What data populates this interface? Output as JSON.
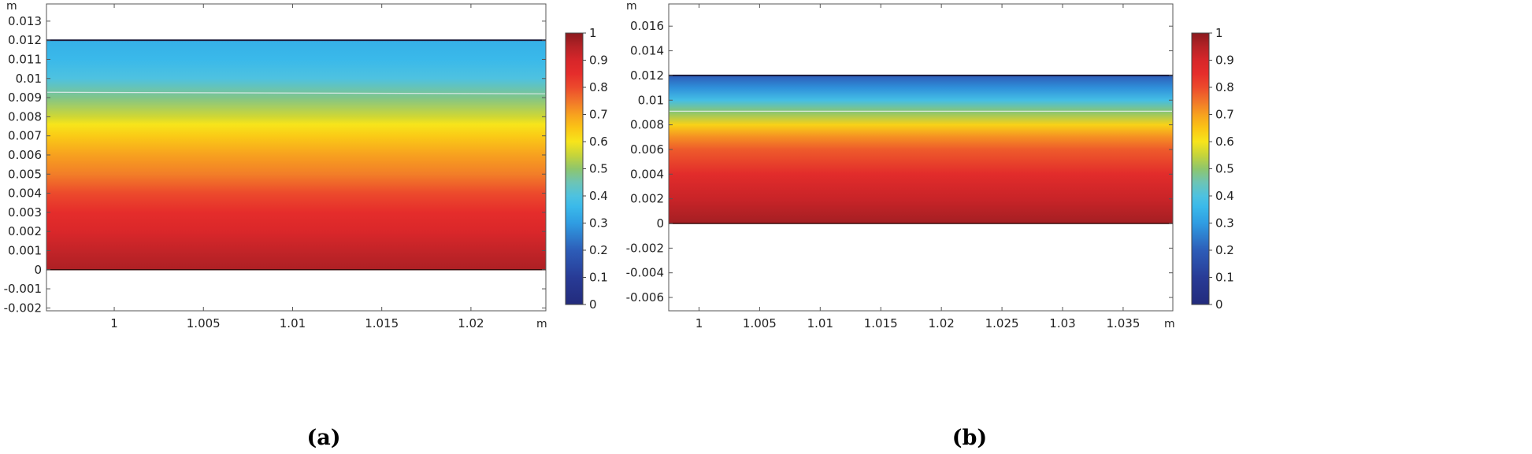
{
  "chart_data": [
    {
      "type": "heatmap",
      "panel_label": "(a)",
      "x_unit": "m",
      "y_unit": "m",
      "xlim": [
        0.9962,
        1.0242
      ],
      "ylim": [
        -0.00215,
        0.0139
      ],
      "x_ticks": [
        1,
        1.005,
        1.01,
        1.015,
        1.02
      ],
      "x_tick_labels": [
        "1",
        "1.005",
        "1.01",
        "1.015",
        "1.02"
      ],
      "y_ticks": [
        -0.002,
        -0.001,
        0,
        0.001,
        0.002,
        0.003,
        0.004,
        0.005,
        0.006,
        0.007,
        0.008,
        0.009,
        0.01,
        0.011,
        0.012,
        0.013
      ],
      "y_tick_labels": [
        "-0.002",
        "-0.001",
        "0",
        "0.001",
        "0.002",
        "0.003",
        "0.004",
        "0.005",
        "0.006",
        "0.007",
        "0.008",
        "0.009",
        "0.01",
        "0.011",
        "0.012",
        "0.013"
      ],
      "domain_y": [
        0,
        0.012
      ],
      "field_profile": [
        {
          "y": 0.0,
          "value": 0.96
        },
        {
          "y": 0.001,
          "value": 0.93
        },
        {
          "y": 0.002,
          "value": 0.89
        },
        {
          "y": 0.003,
          "value": 0.85
        },
        {
          "y": 0.004,
          "value": 0.8
        },
        {
          "y": 0.005,
          "value": 0.74
        },
        {
          "y": 0.006,
          "value": 0.7
        },
        {
          "y": 0.007,
          "value": 0.64
        },
        {
          "y": 0.0076,
          "value": 0.6
        },
        {
          "y": 0.008,
          "value": 0.56
        },
        {
          "y": 0.009,
          "value": 0.48
        },
        {
          "y": 0.01,
          "value": 0.4
        },
        {
          "y": 0.011,
          "value": 0.36
        },
        {
          "y": 0.012,
          "value": 0.34
        }
      ],
      "contour_line_y": [
        0.00928,
        0.0092
      ],
      "colorbar": {
        "range": [
          0,
          1
        ],
        "ticks": [
          0,
          0.1,
          0.2,
          0.3,
          0.4,
          0.5,
          0.6,
          0.7,
          0.8,
          0.9,
          1
        ],
        "tick_labels": [
          "0",
          "0.1",
          "0.2",
          "0.3",
          "0.4",
          "0.5",
          "0.6",
          "0.7",
          "0.8",
          "0.9",
          "1"
        ]
      }
    },
    {
      "type": "heatmap",
      "panel_label": "(b)",
      "x_unit": "m",
      "y_unit": "m",
      "xlim": [
        0.9975,
        1.0391
      ],
      "ylim": [
        -0.00708,
        0.0178
      ],
      "x_ticks": [
        1,
        1.005,
        1.01,
        1.015,
        1.02,
        1.025,
        1.03,
        1.035
      ],
      "x_tick_labels": [
        "1",
        "1.005",
        "1.01",
        "1.015",
        "1.02",
        "1.025",
        "1.03",
        "1.035"
      ],
      "y_ticks": [
        -0.006,
        -0.004,
        -0.002,
        0,
        0.002,
        0.004,
        0.006,
        0.008,
        0.01,
        0.012,
        0.014,
        0.016
      ],
      "y_tick_labels": [
        "-0.006",
        "-0.004",
        "-0.002",
        "0",
        "0.002",
        "0.004",
        "0.006",
        "0.008",
        "0.01",
        "0.012",
        "0.014",
        "0.016"
      ],
      "domain_y": [
        0,
        0.012
      ],
      "field_profile": [
        {
          "y": 0.0,
          "value": 0.97
        },
        {
          "y": 0.002,
          "value": 0.92
        },
        {
          "y": 0.004,
          "value": 0.86
        },
        {
          "y": 0.006,
          "value": 0.78
        },
        {
          "y": 0.007,
          "value": 0.72
        },
        {
          "y": 0.008,
          "value": 0.63
        },
        {
          "y": 0.009,
          "value": 0.5
        },
        {
          "y": 0.01,
          "value": 0.38
        },
        {
          "y": 0.011,
          "value": 0.28
        },
        {
          "y": 0.012,
          "value": 0.2
        }
      ],
      "contour_line_y": [
        0.0091,
        0.0091
      ],
      "colorbar": {
        "range": [
          0,
          1
        ],
        "ticks": [
          0,
          0.1,
          0.2,
          0.3,
          0.4,
          0.5,
          0.6,
          0.7,
          0.8,
          0.9,
          1
        ],
        "tick_labels": [
          "0",
          "0.1",
          "0.2",
          "0.3",
          "0.4",
          "0.5",
          "0.6",
          "0.7",
          "0.8",
          "0.9",
          "1"
        ]
      }
    }
  ],
  "colormap": [
    {
      "v": 0.0,
      "color": "#232b7c"
    },
    {
      "v": 0.1,
      "color": "#283b96"
    },
    {
      "v": 0.2,
      "color": "#2d5db8"
    },
    {
      "v": 0.3,
      "color": "#2f9de2"
    },
    {
      "v": 0.36,
      "color": "#3ab9ea"
    },
    {
      "v": 0.4,
      "color": "#4ec2e0"
    },
    {
      "v": 0.45,
      "color": "#6dc4b5"
    },
    {
      "v": 0.5,
      "color": "#8ec66c"
    },
    {
      "v": 0.55,
      "color": "#c6d43a"
    },
    {
      "v": 0.6,
      "color": "#f7e51b"
    },
    {
      "v": 0.65,
      "color": "#fbc515"
    },
    {
      "v": 0.7,
      "color": "#f7a11f"
    },
    {
      "v": 0.75,
      "color": "#f1752a"
    },
    {
      "v": 0.8,
      "color": "#ec4a2c"
    },
    {
      "v": 0.85,
      "color": "#e52d2b"
    },
    {
      "v": 0.9,
      "color": "#d7262a"
    },
    {
      "v": 0.95,
      "color": "#b52226"
    },
    {
      "v": 1.0,
      "color": "#8b1a1e"
    }
  ]
}
